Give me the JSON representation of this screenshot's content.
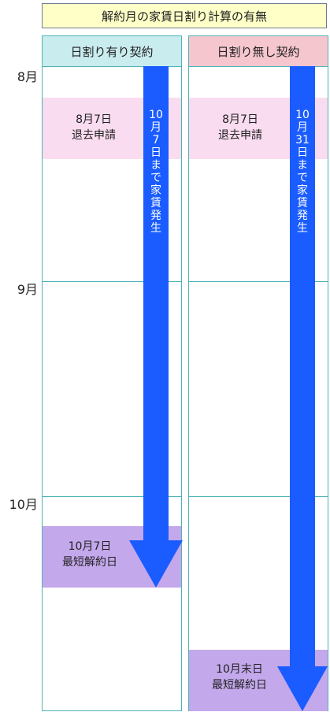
{
  "title": "解約月の家賃日割り計算の有無",
  "months": [
    "8月",
    "9月",
    "10月"
  ],
  "columns": [
    {
      "header": "日割り有り契約",
      "header_color": "#c9ecef",
      "notice": [
        "8月7日",
        "退去申請"
      ],
      "end": [
        "10月7日",
        "最短解約日"
      ],
      "arrow_text": [
        "10",
        "月",
        "7",
        "日",
        "ま",
        "で",
        "家",
        "賃",
        "発",
        "生"
      ]
    },
    {
      "header": "日割り無し契約",
      "header_color": "#f6c6cf",
      "notice": [
        "8月7日",
        "退去申請"
      ],
      "end": [
        "10月末日",
        "最短解約日"
      ],
      "arrow_text": [
        "10",
        "月",
        "31",
        "日",
        "ま",
        "で",
        "家",
        "賃",
        "発",
        "生"
      ]
    }
  ],
  "colors": {
    "arrow": "#1a5cff",
    "notice_band": "#fadcf0",
    "end_band": "#c4a8ec",
    "border": "#4db3b8",
    "title_bg": "#ffffc8"
  }
}
